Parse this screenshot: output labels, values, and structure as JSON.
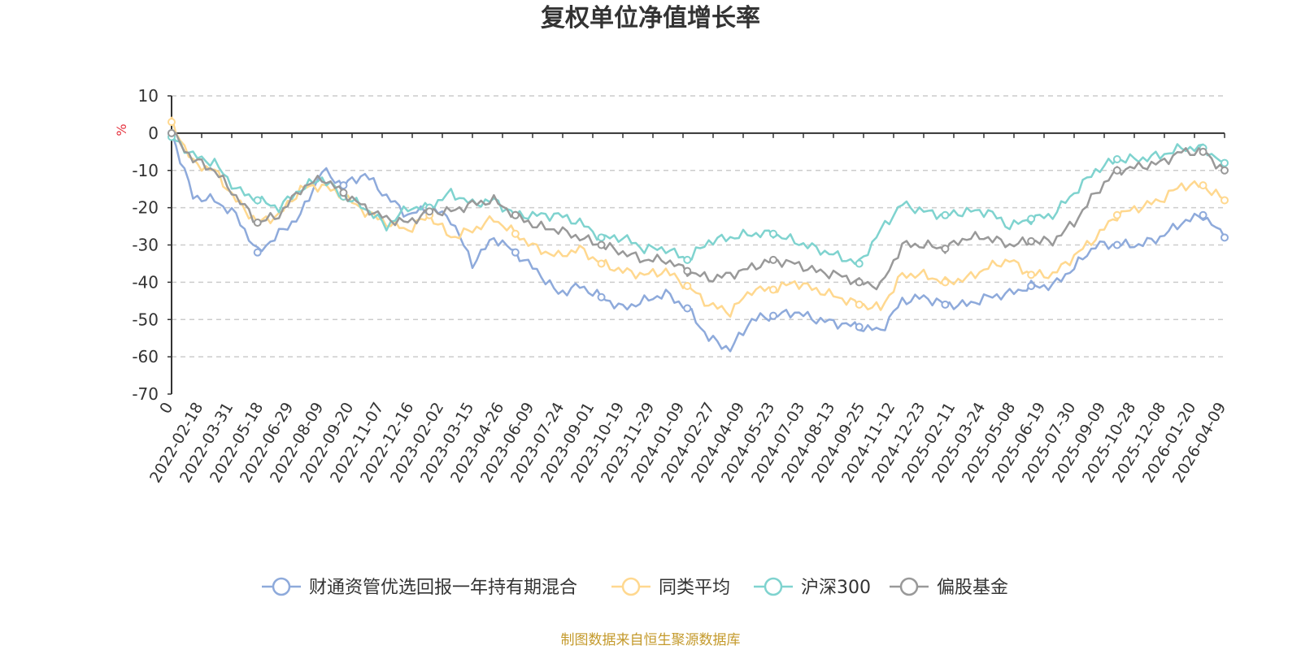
{
  "chart_data": {
    "type": "line",
    "title": "复权单位净值增长率",
    "ylabel": "%",
    "ylim": [
      -70,
      10
    ],
    "yticks": [
      10,
      0,
      -10,
      -20,
      -30,
      -40,
      -50,
      -60,
      -70
    ],
    "x_ticks": [
      "0",
      "2022-02-18",
      "2022-03-31",
      "2022-05-18",
      "2022-06-29",
      "2022-08-09",
      "2022-09-20",
      "2022-11-07",
      "2022-12-16",
      "2023-02-02",
      "2023-03-15",
      "2023-04-26",
      "2023-06-09",
      "2023-07-24",
      "2023-09-01",
      "2023-10-19",
      "2023-11-29",
      "2024-01-09",
      "2024-02-27",
      "2024-04-09",
      "2024-05-23",
      "2024-07-03",
      "2024-08-13",
      "2024-09-25",
      "2024-11-12",
      "2024-12-23",
      "2025-02-11",
      "2025-03-24",
      "2025-05-08",
      "2025-06-19",
      "2025-07-30",
      "2025-09-09",
      "2025-10-28",
      "2025-12-08",
      "2026-01-20",
      "2026-04-09"
    ],
    "grid": true,
    "legend_position": "bottom",
    "series": [
      {
        "name": "财通资管优选回报一年持有期混合",
        "color": "#8eaadb",
        "values": [
          0,
          -17,
          -18,
          -22,
          -32,
          -27,
          -22,
          -10,
          -14,
          -11,
          -17,
          -22,
          -20,
          -23,
          -35,
          -28,
          -32,
          -37,
          -43,
          -41,
          -44,
          -47,
          -45,
          -43,
          -47,
          -55,
          -58,
          -50,
          -49,
          -48,
          -50,
          -51,
          -52,
          -53,
          -45,
          -44,
          -46,
          -46,
          -44,
          -43,
          -41,
          -41,
          -36,
          -30,
          -30,
          -30,
          -28,
          -24,
          -22,
          -28
        ]
      },
      {
        "name": "同类平均",
        "color": "#ffd88f",
        "values": [
          3,
          -8,
          -10,
          -18,
          -24,
          -22,
          -15,
          -14,
          -17,
          -21,
          -24,
          -26,
          -22,
          -28,
          -26,
          -23,
          -27,
          -31,
          -33,
          -31,
          -35,
          -37,
          -38,
          -37,
          -41,
          -46,
          -48,
          -42,
          -42,
          -40,
          -42,
          -44,
          -46,
          -47,
          -38,
          -38,
          -40,
          -39,
          -36,
          -34,
          -38,
          -38,
          -33,
          -28,
          -22,
          -20,
          -18,
          -14,
          -14,
          -18
        ]
      },
      {
        "name": "沪深300",
        "color": "#7fd3cf",
        "values": [
          -1,
          -6,
          -8,
          -15,
          -18,
          -20,
          -15,
          -12,
          -17,
          -20,
          -25,
          -20,
          -20,
          -16,
          -19,
          -18,
          -22,
          -22,
          -22,
          -24,
          -28,
          -28,
          -31,
          -31,
          -34,
          -29,
          -28,
          -27,
          -27,
          -29,
          -31,
          -33,
          -35,
          -26,
          -19,
          -21,
          -22,
          -21,
          -21,
          -25,
          -23,
          -22,
          -16,
          -10,
          -7,
          -7,
          -6,
          -4,
          -4,
          -8
        ]
      },
      {
        "name": "偏股基金",
        "color": "#999999",
        "values": [
          0,
          -7,
          -10,
          -17,
          -24,
          -22,
          -15,
          -12,
          -16,
          -20,
          -23,
          -24,
          -21,
          -21,
          -19,
          -18,
          -22,
          -25,
          -26,
          -28,
          -30,
          -32,
          -34,
          -34,
          -37,
          -39,
          -38,
          -36,
          -34,
          -35,
          -37,
          -38,
          -40,
          -41,
          -30,
          -30,
          -31,
          -28,
          -28,
          -30,
          -29,
          -29,
          -24,
          -16,
          -10,
          -9,
          -8,
          -5,
          -5,
          -10
        ]
      }
    ]
  },
  "source_text": "制图数据来自恒生聚源数据库"
}
